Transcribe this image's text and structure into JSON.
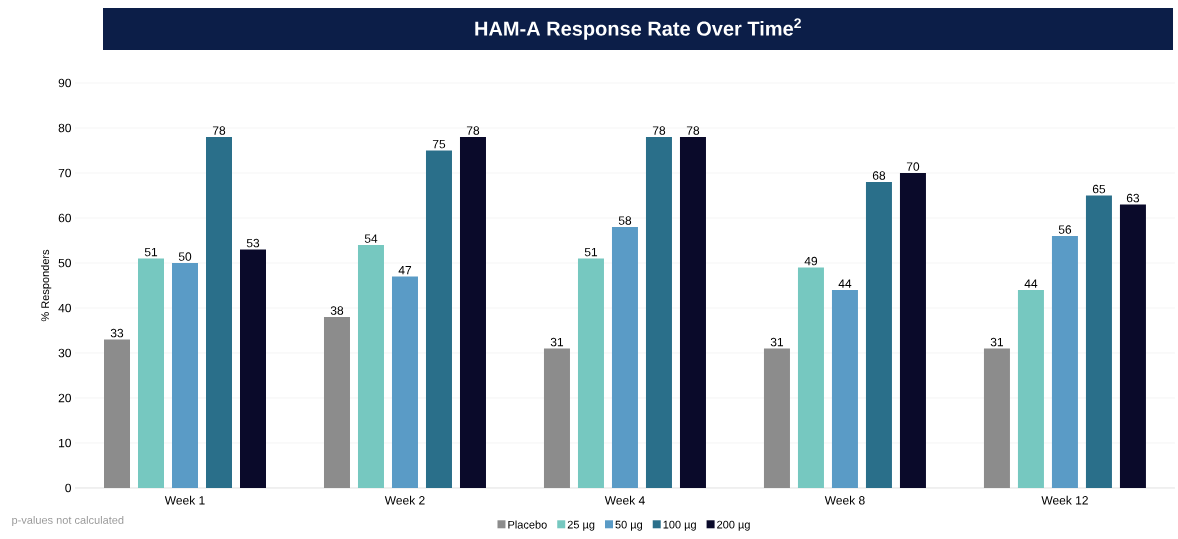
{
  "chart_data": {
    "type": "bar",
    "title": "HAM-A Response Rate Over Time$^{2}$",
    "ylabel": "% Responders",
    "categories": [
      "Week 1",
      "Week 2",
      "Week 4",
      "Week 8",
      "Week 12"
    ],
    "series": [
      {
        "name": "Placebo",
        "color": "#8c8c8c",
        "values": [
          33,
          38,
          31,
          31,
          31
        ]
      },
      {
        "name": "25 µg",
        "color": "#76c8c0",
        "values": [
          51,
          54,
          51,
          49,
          44
        ]
      },
      {
        "name": "50 µg",
        "color": "#5a9bc6",
        "values": [
          50,
          47,
          58,
          44,
          56
        ]
      },
      {
        "name": "100 µg",
        "color": "#2a6f8a",
        "values": [
          78,
          75,
          78,
          68,
          65
        ]
      },
      {
        "name": "200 µg",
        "color": "#0a0a2a",
        "values": [
          53,
          78,
          78,
          70,
          63
        ]
      }
    ],
    "ylim": [
      0,
      90
    ],
    "yticks": [
      0,
      10,
      20,
      30,
      40,
      50,
      60,
      70,
      80,
      90
    ],
    "grid": "y",
    "legend": "bottom",
    "data_labels": true,
    "annotations": [
      "p-values not calculated"
    ]
  }
}
